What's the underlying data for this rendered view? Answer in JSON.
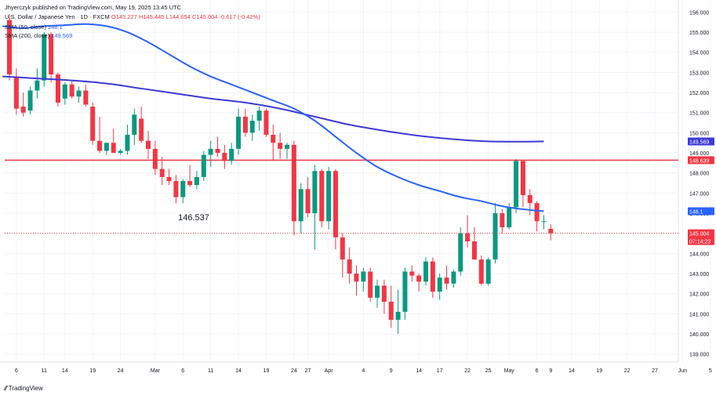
{
  "header": {
    "published": "Jhyerczyk published on TradingView.com, May 19, 2025 13:45 UTC",
    "symbol": "U.S. Dollar / Japanese Yen · 1D · FXCM",
    "ohlc": {
      "o": "O145.227",
      "h": "H145.445",
      "l": "L144.654",
      "c": "C145.004",
      "chg": "-0.617 (-0.42%)"
    },
    "sma50": {
      "label": "SMA (50, close)",
      "value": "146.1"
    },
    "sma200": {
      "label": "SMA (200, close)",
      "value": "149.569"
    }
  },
  "brand": "TradingView",
  "colors": {
    "up": "#089981",
    "down": "#f23645",
    "sma50": "#2962ff",
    "sma200": "#3f39d6",
    "hline": "#f23645"
  },
  "chart_data": {
    "type": "candlestick",
    "ylim": [
      138.6,
      156.6
    ],
    "y_ticks": [
      "156.000",
      "155.000",
      "154.000",
      "153.000",
      "152.000",
      "151.000",
      "150.000",
      "149.000",
      "148.000",
      "147.000",
      "146.000",
      "145.000",
      "144.000",
      "143.000",
      "142.000",
      "141.000",
      "140.000",
      "139.000"
    ],
    "x_ticks": [
      "6",
      "11",
      "14",
      "19",
      "24",
      "Mar",
      "6",
      "11",
      "14",
      "19",
      "24",
      "27",
      "Apr",
      "4",
      "9",
      "14",
      "17",
      "22",
      "25",
      "May",
      "6",
      "9",
      "14",
      "19",
      "22",
      "27",
      "Jun",
      "5"
    ],
    "annotation": "146.537",
    "horizontal_line": 148.639,
    "price_labels": {
      "sma200": "149.569",
      "hline": "148.639",
      "sma50": "146.1",
      "last": "145.004",
      "countdown": "07:14:23"
    },
    "candles": [
      [
        155.6,
        155.9,
        152.6,
        152.9
      ],
      [
        152.8,
        153.2,
        150.9,
        151.2
      ],
      [
        151.3,
        152.0,
        150.8,
        151.0
      ],
      [
        151.1,
        152.3,
        150.9,
        152.1
      ],
      [
        152.1,
        153.2,
        151.7,
        152.6
      ],
      [
        152.6,
        155.0,
        152.3,
        154.9
      ],
      [
        154.9,
        155.0,
        152.5,
        152.9
      ],
      [
        152.9,
        153.0,
        151.3,
        151.5
      ],
      [
        151.7,
        152.5,
        151.4,
        152.4
      ],
      [
        152.4,
        152.6,
        151.7,
        151.8
      ],
      [
        151.8,
        152.3,
        151.5,
        152.1
      ],
      [
        152.1,
        152.4,
        151.3,
        151.4
      ],
      [
        151.3,
        151.5,
        149.4,
        149.6
      ],
      [
        149.6,
        150.8,
        149.0,
        149.1
      ],
      [
        149.1,
        149.5,
        148.9,
        149.5
      ],
      [
        149.5,
        150.2,
        149.0,
        149.0
      ],
      [
        149.0,
        149.2,
        148.9,
        149.1
      ],
      [
        149.1,
        150.4,
        148.9,
        149.9
      ],
      [
        149.9,
        151.2,
        149.4,
        150.9
      ],
      [
        150.7,
        151.3,
        149.5,
        149.6
      ],
      [
        149.6,
        150.1,
        148.7,
        149.2
      ],
      [
        149.2,
        149.6,
        147.9,
        148.2
      ],
      [
        148.2,
        148.8,
        147.4,
        147.8
      ],
      [
        147.8,
        148.2,
        147.4,
        147.6
      ],
      [
        147.6,
        147.9,
        146.5,
        146.8
      ],
      [
        146.8,
        147.7,
        146.5,
        147.6
      ],
      [
        147.6,
        148.4,
        147.3,
        147.4
      ],
      [
        147.4,
        148.1,
        147.2,
        147.8
      ],
      [
        147.8,
        149.1,
        147.6,
        148.9
      ],
      [
        148.9,
        149.6,
        148.3,
        149.2
      ],
      [
        149.2,
        149.8,
        148.8,
        149.0
      ],
      [
        149.0,
        149.4,
        148.2,
        148.6
      ],
      [
        148.6,
        149.5,
        148.4,
        149.2
      ],
      [
        149.2,
        151.2,
        148.9,
        150.8
      ],
      [
        150.8,
        151.2,
        149.8,
        150.0
      ],
      [
        150.0,
        150.9,
        149.6,
        150.6
      ],
      [
        150.6,
        151.3,
        150.1,
        151.1
      ],
      [
        151.1,
        151.2,
        149.8,
        149.9
      ],
      [
        149.9,
        150.4,
        148.6,
        149.5
      ],
      [
        149.5,
        150.0,
        148.7,
        149.2
      ],
      [
        149.2,
        149.5,
        148.7,
        149.4
      ],
      [
        149.4,
        149.6,
        144.9,
        145.6
      ],
      [
        145.6,
        147.5,
        145.0,
        147.2
      ],
      [
        147.2,
        147.8,
        145.8,
        146.0
      ],
      [
        146.0,
        148.4,
        144.2,
        148.1
      ],
      [
        148.1,
        148.2,
        145.3,
        145.6
      ],
      [
        145.6,
        148.3,
        145.2,
        148.1
      ],
      [
        148.1,
        148.2,
        144.2,
        144.8
      ],
      [
        144.8,
        145.0,
        142.8,
        143.7
      ],
      [
        143.7,
        144.3,
        142.5,
        143.0
      ],
      [
        143.0,
        143.4,
        141.9,
        142.6
      ],
      [
        142.6,
        143.3,
        142.1,
        143.1
      ],
      [
        143.1,
        143.3,
        141.6,
        141.8
      ],
      [
        141.8,
        142.7,
        141.3,
        142.4
      ],
      [
        142.4,
        142.7,
        141.0,
        141.6
      ],
      [
        141.6,
        142.4,
        140.3,
        140.7
      ],
      [
        140.7,
        142.2,
        140.0,
        141.1
      ],
      [
        141.1,
        143.3,
        140.7,
        143.1
      ],
      [
        143.1,
        143.4,
        142.6,
        142.9
      ],
      [
        142.9,
        143.0,
        142.1,
        142.6
      ],
      [
        142.6,
        143.8,
        142.4,
        143.6
      ],
      [
        143.6,
        143.8,
        141.8,
        142.1
      ],
      [
        142.1,
        143.0,
        141.7,
        142.8
      ],
      [
        142.8,
        143.4,
        142.2,
        142.5
      ],
      [
        142.5,
        143.2,
        142.3,
        143.1
      ],
      [
        143.1,
        145.3,
        142.9,
        145.0
      ],
      [
        145.0,
        145.9,
        144.3,
        144.6
      ],
      [
        144.6,
        145.3,
        143.8,
        143.7
      ],
      [
        143.7,
        143.9,
        142.4,
        142.5
      ],
      [
        142.5,
        143.8,
        142.4,
        143.7
      ],
      [
        143.7,
        146.5,
        143.5,
        146.0
      ],
      [
        146.0,
        146.2,
        145.0,
        145.3
      ],
      [
        145.3,
        146.5,
        145.2,
        146.3
      ],
      [
        146.3,
        148.7,
        146.0,
        148.6
      ],
      [
        148.6,
        148.6,
        146.3,
        146.9
      ],
      [
        146.9,
        147.2,
        145.9,
        146.5
      ],
      [
        146.5,
        146.6,
        145.1,
        145.6
      ],
      [
        145.6,
        145.9,
        145.2,
        145.6
      ],
      [
        145.227,
        145.445,
        144.654,
        145.004
      ]
    ],
    "sma50": [
      [
        -1,
        155.3
      ],
      [
        2,
        155.2
      ],
      [
        5,
        155.3
      ],
      [
        8,
        155.35
      ],
      [
        11,
        155.4
      ],
      [
        14,
        155.3
      ],
      [
        17,
        155.0
      ],
      [
        20,
        154.5
      ],
      [
        23,
        153.9
      ],
      [
        26,
        153.3
      ],
      [
        29,
        152.8
      ],
      [
        32,
        152.4
      ],
      [
        35,
        152.0
      ],
      [
        38,
        151.6
      ],
      [
        41,
        151.2
      ],
      [
        44,
        150.6
      ],
      [
        47,
        149.8
      ],
      [
        50,
        149.0
      ],
      [
        53,
        148.3
      ],
      [
        56,
        147.8
      ],
      [
        59,
        147.4
      ],
      [
        62,
        147.1
      ],
      [
        65,
        146.8
      ],
      [
        68,
        146.6
      ],
      [
        71,
        146.35
      ],
      [
        74,
        146.2
      ],
      [
        77,
        146.1
      ]
    ],
    "sma200": [
      [
        -1,
        152.8
      ],
      [
        4,
        152.7
      ],
      [
        9,
        152.6
      ],
      [
        14,
        152.45
      ],
      [
        19,
        152.2
      ],
      [
        24,
        151.95
      ],
      [
        29,
        151.7
      ],
      [
        34,
        151.5
      ],
      [
        39,
        151.2
      ],
      [
        44,
        150.8
      ],
      [
        49,
        150.4
      ],
      [
        54,
        150.1
      ],
      [
        59,
        149.85
      ],
      [
        64,
        149.68
      ],
      [
        69,
        149.57
      ],
      [
        74,
        149.56
      ],
      [
        77,
        149.569
      ]
    ]
  }
}
